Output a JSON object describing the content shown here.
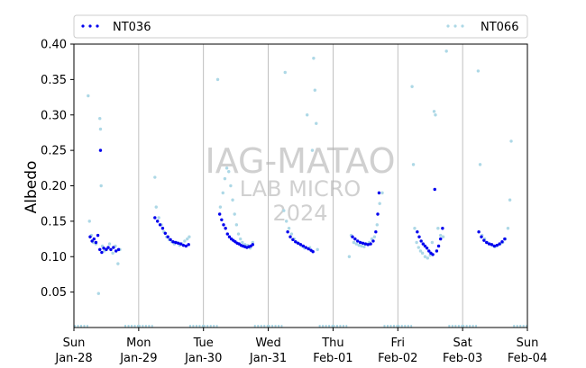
{
  "chart_data": {
    "type": "scatter",
    "title": "",
    "ylabel": "Albedo",
    "xlabel": "",
    "ylim": [
      0.0,
      0.4
    ],
    "y_ticks": [
      "0.05",
      "0.10",
      "0.15",
      "0.20",
      "0.25",
      "0.30",
      "0.35",
      "0.40"
    ],
    "x_range": [
      "2024-01-28",
      "2024-02-04"
    ],
    "x_ticks": [
      {
        "day": "Sun",
        "date": "Jan-28"
      },
      {
        "day": "Mon",
        "date": "Jan-29"
      },
      {
        "day": "Tue",
        "date": "Jan-30"
      },
      {
        "day": "Wed",
        "date": "Jan-31"
      },
      {
        "day": "Thu",
        "date": "Feb-01"
      },
      {
        "day": "Fri",
        "date": "Feb-02"
      },
      {
        "day": "Sat",
        "date": "Feb-03"
      },
      {
        "day": "Sun",
        "date": "Feb-04"
      }
    ],
    "grid": "vertical lines at day boundaries",
    "legend_placement": "top, spanning",
    "watermark": {
      "line1": "IAG-MATAO",
      "line2": "LAB MICRO",
      "line3": "2024"
    },
    "series": [
      {
        "name": "NT036",
        "color": "#0000ee",
        "daily_points": [
          [
            [
              0.25,
              0.128
            ],
            [
              0.28,
              0.122
            ],
            [
              0.31,
              0.125
            ],
            [
              0.34,
              0.12
            ],
            [
              0.37,
              0.13
            ],
            [
              0.4,
              0.11
            ],
            [
              0.41,
              0.25
            ],
            [
              0.43,
              0.106
            ],
            [
              0.46,
              0.112
            ],
            [
              0.5,
              0.11
            ],
            [
              0.53,
              0.113
            ],
            [
              0.57,
              0.11
            ],
            [
              0.61,
              0.113
            ],
            [
              0.65,
              0.108
            ],
            [
              0.69,
              0.11
            ]
          ],
          [
            [
              0.25,
              0.155
            ],
            [
              0.29,
              0.15
            ],
            [
              0.33,
              0.145
            ],
            [
              0.37,
              0.14
            ],
            [
              0.41,
              0.133
            ],
            [
              0.45,
              0.128
            ],
            [
              0.49,
              0.124
            ],
            [
              0.53,
              0.121
            ],
            [
              0.57,
              0.12
            ],
            [
              0.61,
              0.119
            ],
            [
              0.65,
              0.118
            ],
            [
              0.69,
              0.116
            ],
            [
              0.73,
              0.115
            ],
            [
              0.77,
              0.117
            ]
          ],
          [
            [
              0.25,
              0.16
            ],
            [
              0.28,
              0.152
            ],
            [
              0.31,
              0.145
            ],
            [
              0.34,
              0.14
            ],
            [
              0.37,
              0.132
            ],
            [
              0.4,
              0.128
            ],
            [
              0.43,
              0.125
            ],
            [
              0.46,
              0.123
            ],
            [
              0.49,
              0.121
            ],
            [
              0.52,
              0.119
            ],
            [
              0.55,
              0.118
            ],
            [
              0.58,
              0.116
            ],
            [
              0.61,
              0.115
            ],
            [
              0.64,
              0.114
            ],
            [
              0.67,
              0.113
            ],
            [
              0.7,
              0.114
            ],
            [
              0.73,
              0.115
            ],
            [
              0.76,
              0.117
            ]
          ],
          [
            [
              0.3,
              0.135
            ],
            [
              0.34,
              0.128
            ],
            [
              0.38,
              0.124
            ],
            [
              0.42,
              0.121
            ],
            [
              0.46,
              0.119
            ],
            [
              0.5,
              0.117
            ],
            [
              0.54,
              0.115
            ],
            [
              0.58,
              0.113
            ],
            [
              0.62,
              0.111
            ],
            [
              0.66,
              0.109
            ],
            [
              0.69,
              0.107
            ]
          ],
          [
            [
              0.3,
              0.128
            ],
            [
              0.34,
              0.125
            ],
            [
              0.38,
              0.122
            ],
            [
              0.42,
              0.12
            ],
            [
              0.46,
              0.119
            ],
            [
              0.5,
              0.118
            ],
            [
              0.54,
              0.117
            ],
            [
              0.58,
              0.118
            ],
            [
              0.62,
              0.122
            ],
            [
              0.66,
              0.135
            ],
            [
              0.69,
              0.16
            ],
            [
              0.71,
              0.19
            ]
          ],
          [
            [
              0.3,
              0.135
            ],
            [
              0.33,
              0.128
            ],
            [
              0.36,
              0.122
            ],
            [
              0.39,
              0.118
            ],
            [
              0.42,
              0.115
            ],
            [
              0.45,
              0.112
            ],
            [
              0.48,
              0.108
            ],
            [
              0.51,
              0.105
            ],
            [
              0.54,
              0.103
            ],
            [
              0.57,
              0.195
            ],
            [
              0.6,
              0.108
            ],
            [
              0.63,
              0.115
            ],
            [
              0.66,
              0.125
            ],
            [
              0.69,
              0.14
            ]
          ],
          [
            [
              0.25,
              0.135
            ],
            [
              0.29,
              0.128
            ],
            [
              0.33,
              0.123
            ],
            [
              0.37,
              0.12
            ],
            [
              0.41,
              0.118
            ],
            [
              0.45,
              0.117
            ],
            [
              0.49,
              0.115
            ],
            [
              0.53,
              0.116
            ],
            [
              0.57,
              0.118
            ],
            [
              0.61,
              0.121
            ],
            [
              0.65,
              0.125
            ]
          ]
        ]
      },
      {
        "name": "NT066",
        "color": "#add8e6",
        "daily_points": [
          [
            [
              0.22,
              0.327
            ],
            [
              0.24,
              0.15
            ],
            [
              0.27,
              0.13
            ],
            [
              0.3,
              0.12
            ],
            [
              0.34,
              0.118
            ],
            [
              0.38,
              0.048
            ],
            [
              0.4,
              0.295
            ],
            [
              0.41,
              0.28
            ],
            [
              0.42,
              0.2
            ],
            [
              0.44,
              0.115
            ],
            [
              0.47,
              0.108
            ],
            [
              0.52,
              0.112
            ],
            [
              0.55,
              0.118
            ],
            [
              0.6,
              0.105
            ],
            [
              0.64,
              0.115
            ],
            [
              0.68,
              0.09
            ],
            [
              0.71,
              0.11
            ]
          ],
          [
            [
              0.25,
              0.212
            ],
            [
              0.27,
              0.17
            ],
            [
              0.31,
              0.155
            ],
            [
              0.35,
              0.145
            ],
            [
              0.39,
              0.135
            ],
            [
              0.43,
              0.128
            ],
            [
              0.47,
              0.124
            ],
            [
              0.51,
              0.121
            ],
            [
              0.55,
              0.118
            ],
            [
              0.59,
              0.12
            ],
            [
              0.63,
              0.116
            ],
            [
              0.67,
              0.118
            ],
            [
              0.71,
              0.122
            ],
            [
              0.75,
              0.125
            ],
            [
              0.78,
              0.128
            ]
          ],
          [
            [
              0.22,
              0.35
            ],
            [
              0.26,
              0.17
            ],
            [
              0.3,
              0.19
            ],
            [
              0.33,
              0.21
            ],
            [
              0.36,
              0.225
            ],
            [
              0.39,
              0.22
            ],
            [
              0.42,
              0.2
            ],
            [
              0.45,
              0.18
            ],
            [
              0.48,
              0.16
            ],
            [
              0.51,
              0.145
            ],
            [
              0.54,
              0.132
            ],
            [
              0.57,
              0.125
            ],
            [
              0.6,
              0.12
            ],
            [
              0.64,
              0.117
            ],
            [
              0.68,
              0.116
            ],
            [
              0.72,
              0.112
            ],
            [
              0.76,
              0.12
            ]
          ],
          [
            [
              0.24,
              0.165
            ],
            [
              0.26,
              0.36
            ],
            [
              0.28,
              0.15
            ],
            [
              0.32,
              0.14
            ],
            [
              0.36,
              0.132
            ],
            [
              0.4,
              0.125
            ],
            [
              0.44,
              0.12
            ],
            [
              0.48,
              0.118
            ],
            [
              0.52,
              0.115
            ],
            [
              0.56,
              0.112
            ],
            [
              0.6,
              0.3
            ],
            [
              0.64,
              0.113
            ],
            [
              0.68,
              0.25
            ],
            [
              0.7,
              0.38
            ],
            [
              0.72,
              0.335
            ],
            [
              0.74,
              0.288
            ],
            [
              0.76,
              0.11
            ]
          ],
          [
            [
              0.25,
              0.1
            ],
            [
              0.28,
              0.13
            ],
            [
              0.32,
              0.12
            ],
            [
              0.36,
              0.118
            ],
            [
              0.4,
              0.116
            ],
            [
              0.44,
              0.115
            ],
            [
              0.48,
              0.114
            ],
            [
              0.52,
              0.118
            ],
            [
              0.56,
              0.12
            ],
            [
              0.6,
              0.125
            ],
            [
              0.64,
              0.128
            ],
            [
              0.68,
              0.145
            ],
            [
              0.72,
              0.175
            ],
            [
              0.76,
              0.19
            ]
          ],
          [
            [
              0.22,
              0.34
            ],
            [
              0.24,
              0.23
            ],
            [
              0.26,
              0.14
            ],
            [
              0.29,
              0.12
            ],
            [
              0.32,
              0.113
            ],
            [
              0.35,
              0.108
            ],
            [
              0.38,
              0.105
            ],
            [
              0.42,
              0.1
            ],
            [
              0.46,
              0.098
            ],
            [
              0.5,
              0.102
            ],
            [
              0.53,
              0.12
            ],
            [
              0.56,
              0.305
            ],
            [
              0.58,
              0.3
            ],
            [
              0.62,
              0.14
            ],
            [
              0.66,
              0.13
            ],
            [
              0.7,
              0.128
            ],
            [
              0.75,
              0.39
            ]
          ],
          [
            [
              0.24,
              0.362
            ],
            [
              0.27,
              0.23
            ],
            [
              0.3,
              0.13
            ],
            [
              0.34,
              0.125
            ],
            [
              0.38,
              0.12
            ],
            [
              0.42,
              0.118
            ],
            [
              0.46,
              0.116
            ],
            [
              0.5,
              0.114
            ],
            [
              0.54,
              0.116
            ],
            [
              0.58,
              0.118
            ],
            [
              0.62,
              0.12
            ],
            [
              0.66,
              0.125
            ],
            [
              0.7,
              0.14
            ],
            [
              0.73,
              0.18
            ],
            [
              0.75,
              0.263
            ]
          ]
        ]
      }
    ]
  }
}
